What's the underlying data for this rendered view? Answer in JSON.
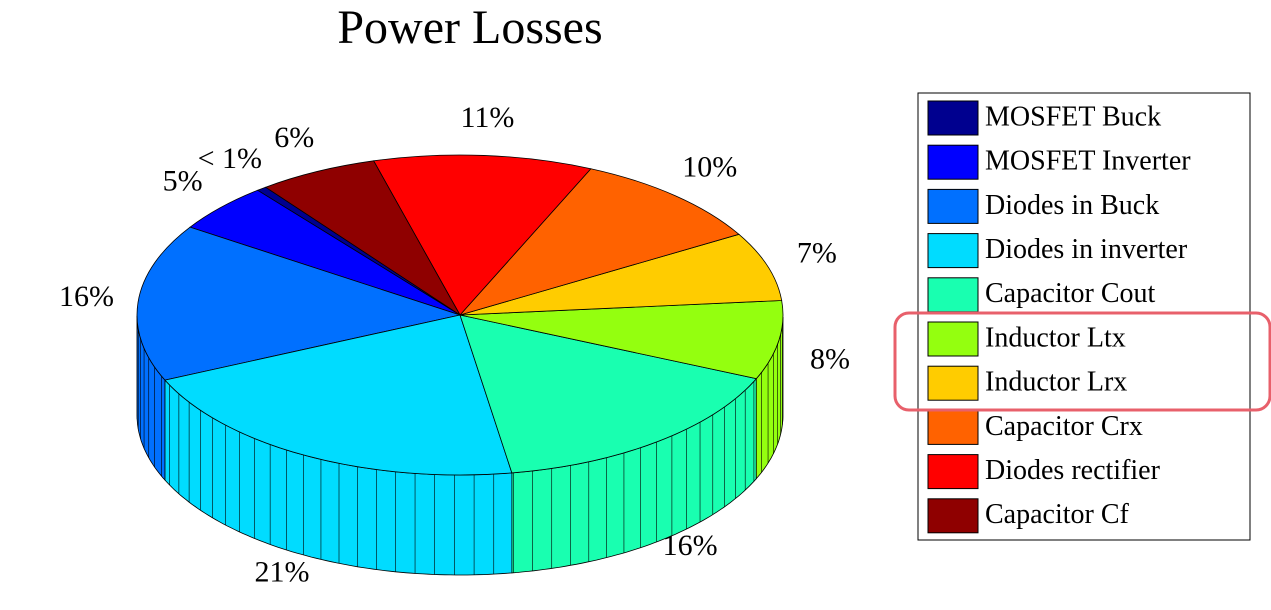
{
  "chart_data": {
    "type": "pie3d",
    "title": "Power Losses",
    "categories": [
      "MOSFET Buck",
      "MOSFET Inverter",
      "Diodes in Buck",
      "Diodes in inverter",
      "Capacitor Cout",
      "Inductor Ltx",
      "Inductor Lrx",
      "Capacitor Crx",
      "Diodes rectifier",
      "Capacitor Cf"
    ],
    "values": [
      0.5,
      5,
      16,
      21,
      16,
      8,
      7,
      10,
      11,
      6
    ],
    "value_labels": [
      "< 1%",
      "5%",
      "16%",
      "21%",
      "16%",
      "8%",
      "7%",
      "10%",
      "11%",
      "6%"
    ],
    "colors": [
      "#00008f",
      "#0000ff",
      "#0070ff",
      "#00dcff",
      "#19ffb0",
      "#94ff0f",
      "#ffcc00",
      "#ff6200",
      "#ff0000",
      "#8f0000"
    ],
    "legend": "right"
  }
}
